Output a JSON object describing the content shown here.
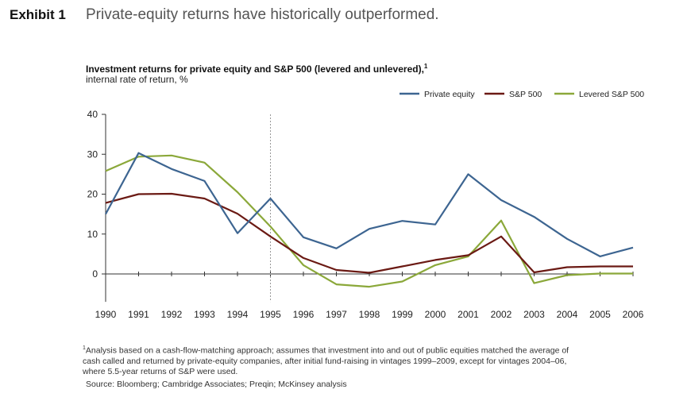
{
  "header": {
    "exhibit_label": "Exhibit 1",
    "headline": "Private-equity returns have historically outperformed."
  },
  "footnote": {
    "marker": "1",
    "text": "Analysis based on a cash-flow-matching approach; assumes that investment into and out of public equities matched the average of cash called and returned by private-equity companies, after initial fund-raising in vintages 1999–2009, except for vintages 2004–06, where 5.5-year returns of S&P were used."
  },
  "source": "Source: Bloomberg; Cambridge Associates; Preqin; McKinsey analysis",
  "chart_data": {
    "type": "line",
    "title": "Investment returns for private equity and S&P 500 (levered and unlevered),",
    "title_footnote_marker": "1",
    "subtitle": "internal rate of return, %",
    "x": [
      "1990",
      "1991",
      "1992",
      "1993",
      "1994",
      "1995",
      "1996",
      "1997",
      "1998",
      "1999",
      "2000",
      "2001",
      "2002",
      "2003",
      "2004",
      "2005",
      "2006"
    ],
    "ylim": [
      -7,
      40
    ],
    "yticks": [
      0,
      10,
      20,
      30,
      40
    ],
    "reference_line_x": "1995",
    "grid": false,
    "legend_position": "top-right",
    "series": [
      {
        "name": "Private equity",
        "color": "#3d6591",
        "values": [
          15,
          30.3,
          26.3,
          23.3,
          10.2,
          18.9,
          9.2,
          6.4,
          11.3,
          13.3,
          12.4,
          25,
          18.5,
          14.3,
          8.8,
          4.4,
          6.6
        ]
      },
      {
        "name": "S&P 500",
        "color": "#6b1a14",
        "values": [
          17.8,
          20,
          20.1,
          18.9,
          15.1,
          9.4,
          4,
          1,
          0.3,
          1.9,
          3.5,
          4.7,
          9.4,
          0.4,
          1.7,
          1.9,
          1.9
        ]
      },
      {
        "name": "Levered S&P 500",
        "color": "#8ba83a",
        "values": [
          25.8,
          29.4,
          29.7,
          27.9,
          20.5,
          11.9,
          2.2,
          -2.6,
          -3.2,
          -1.9,
          2.2,
          4.4,
          13.4,
          -2.3,
          -0.3,
          0.1,
          0.1
        ]
      }
    ]
  }
}
